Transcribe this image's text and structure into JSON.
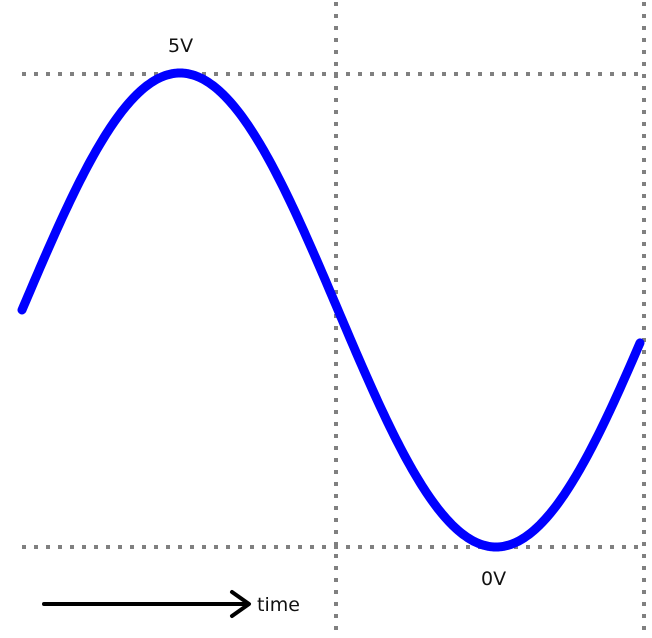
{
  "labels": {
    "high": "5V",
    "low": "0V",
    "time": "time"
  },
  "colors": {
    "wave": "#0000ff",
    "grid": "#808080",
    "arrow": "#000000"
  }
}
